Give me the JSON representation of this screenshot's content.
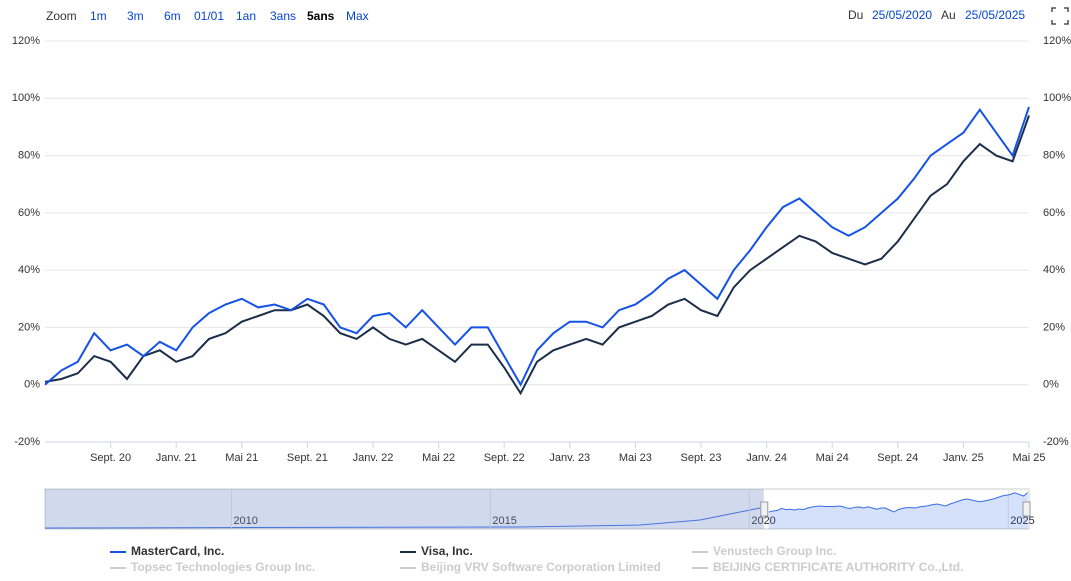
{
  "toolbar": {
    "zoom_label": "Zoom",
    "buttons": [
      "1m",
      "3m",
      "6m",
      "01/01",
      "1an",
      "3ans",
      "5ans",
      "Max"
    ],
    "selected": "5ans",
    "from_label": "Du",
    "from": "25/05/2020",
    "to_label": "Au",
    "to": "25/05/2025"
  },
  "chart_data": {
    "type": "line",
    "x": [
      "2020-05",
      "2020-06",
      "2020-07",
      "2020-08",
      "2020-09",
      "2020-10",
      "2020-11",
      "2020-12",
      "2021-01",
      "2021-02",
      "2021-03",
      "2021-04",
      "2021-05",
      "2021-06",
      "2021-07",
      "2021-08",
      "2021-09",
      "2021-10",
      "2021-11",
      "2021-12",
      "2022-01",
      "2022-02",
      "2022-03",
      "2022-04",
      "2022-05",
      "2022-06",
      "2022-07",
      "2022-08",
      "2022-09",
      "2022-10",
      "2022-11",
      "2022-12",
      "2023-01",
      "2023-02",
      "2023-03",
      "2023-04",
      "2023-05",
      "2023-06",
      "2023-07",
      "2023-08",
      "2023-09",
      "2023-10",
      "2023-11",
      "2023-12",
      "2024-01",
      "2024-02",
      "2024-03",
      "2024-04",
      "2024-05",
      "2024-06",
      "2024-07",
      "2024-08",
      "2024-09",
      "2024-10",
      "2024-11",
      "2024-12",
      "2025-01",
      "2025-02",
      "2025-03",
      "2025-04",
      "2025-05"
    ],
    "series": [
      {
        "name": "MasterCard, Inc.",
        "color": "#1552e6",
        "values": [
          0,
          5,
          8,
          18,
          12,
          14,
          10,
          15,
          12,
          20,
          25,
          28,
          30,
          27,
          28,
          26,
          30,
          28,
          20,
          18,
          24,
          25,
          20,
          26,
          20,
          14,
          20,
          20,
          10,
          0,
          12,
          18,
          22,
          22,
          20,
          26,
          28,
          32,
          37,
          40,
          35,
          30,
          40,
          47,
          55,
          62,
          65,
          60,
          55,
          52,
          55,
          60,
          65,
          72,
          80,
          84,
          88,
          96,
          88,
          80,
          97
        ]
      },
      {
        "name": "Visa, Inc.",
        "color": "#1c2e4a",
        "values": [
          1,
          2,
          4,
          10,
          8,
          2,
          10,
          12,
          8,
          10,
          16,
          18,
          22,
          24,
          26,
          26,
          28,
          24,
          18,
          16,
          20,
          16,
          14,
          16,
          12,
          8,
          14,
          14,
          6,
          -3,
          8,
          12,
          14,
          16,
          14,
          20,
          22,
          24,
          28,
          30,
          26,
          24,
          34,
          40,
          44,
          48,
          52,
          50,
          46,
          44,
          42,
          44,
          50,
          58,
          66,
          70,
          78,
          84,
          80,
          78,
          94
        ]
      }
    ],
    "hidden_series": [
      "Venustech Group Inc.",
      "Topsec Technologies Group Inc.",
      "Beijing VRV Software Corporation Limited",
      "BEIJING CERTIFICATE AUTHORITY Co.,Ltd."
    ],
    "xlim": [
      "2020-05",
      "2025-05"
    ],
    "xticks": [
      {
        "value": "2020-09",
        "label": "Sept. 20"
      },
      {
        "value": "2021-01",
        "label": "Janv. 21"
      },
      {
        "value": "2021-05",
        "label": "Mai 21"
      },
      {
        "value": "2021-09",
        "label": "Sept. 21"
      },
      {
        "value": "2022-01",
        "label": "Janv. 22"
      },
      {
        "value": "2022-05",
        "label": "Mai 22"
      },
      {
        "value": "2022-09",
        "label": "Sept. 22"
      },
      {
        "value": "2023-01",
        "label": "Janv. 23"
      },
      {
        "value": "2023-05",
        "label": "Mai 23"
      },
      {
        "value": "2023-09",
        "label": "Sept. 23"
      },
      {
        "value": "2024-01",
        "label": "Janv. 24"
      },
      {
        "value": "2024-05",
        "label": "Mai 24"
      },
      {
        "value": "2024-09",
        "label": "Sept. 24"
      },
      {
        "value": "2025-01",
        "label": "Janv. 25"
      },
      {
        "value": "2025-05",
        "label": "Mai 25"
      }
    ],
    "ylim": [
      -20,
      120
    ],
    "yticks": [
      {
        "value": -20,
        "label": "-20%"
      },
      {
        "value": 0,
        "label": "0%"
      },
      {
        "value": 20,
        "label": "20%"
      },
      {
        "value": 40,
        "label": "40%"
      },
      {
        "value": 60,
        "label": "60%"
      },
      {
        "value": 80,
        "label": "80%"
      },
      {
        "value": 100,
        "label": "100%"
      },
      {
        "value": 120,
        "label": "120%"
      }
    ],
    "grid": true,
    "navigator": {
      "xlim": [
        2006.4,
        2025.4
      ],
      "xticks": [
        2010,
        2015,
        2020,
        2025
      ]
    }
  }
}
